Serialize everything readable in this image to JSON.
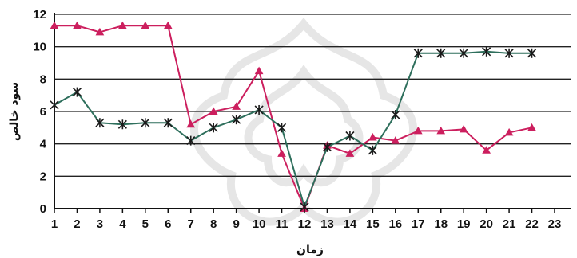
{
  "chart_data": {
    "type": "line",
    "xlabel": "زمان",
    "ylabel": "سود خالص",
    "x": [
      1,
      2,
      3,
      4,
      5,
      6,
      7,
      8,
      9,
      10,
      11,
      12,
      13,
      14,
      15,
      16,
      17,
      18,
      19,
      20,
      21,
      22
    ],
    "x_ticks": [
      "1",
      "2",
      "3",
      "4",
      "5",
      "6",
      "7",
      "8",
      "9",
      "10",
      "11",
      "12",
      "13",
      "14",
      "15",
      "16",
      "17",
      "18",
      "19",
      "20",
      "21",
      "22",
      "23"
    ],
    "xlim": [
      1,
      23
    ],
    "y_ticks": [
      "0",
      "2",
      "4",
      "6",
      "8",
      "10",
      "12"
    ],
    "ylim": [
      0,
      12
    ],
    "grid": "horizontal",
    "series": [
      {
        "color": "#cc1f5e",
        "marker": "triangle",
        "values": [
          11.3,
          11.3,
          10.9,
          11.3,
          11.3,
          11.3,
          5.2,
          6.0,
          6.3,
          8.5,
          3.4,
          0.0,
          3.9,
          3.4,
          4.4,
          4.2,
          4.8,
          4.8,
          4.9,
          3.6,
          4.7,
          5.0
        ]
      },
      {
        "color": "#2e6f5c",
        "marker": "star",
        "values": [
          6.4,
          7.2,
          5.3,
          5.2,
          5.3,
          5.3,
          4.2,
          5.0,
          5.5,
          6.1,
          5.0,
          0.1,
          3.8,
          4.5,
          3.6,
          5.8,
          9.6,
          9.6,
          9.6,
          9.7,
          9.6,
          9.6
        ]
      }
    ]
  }
}
